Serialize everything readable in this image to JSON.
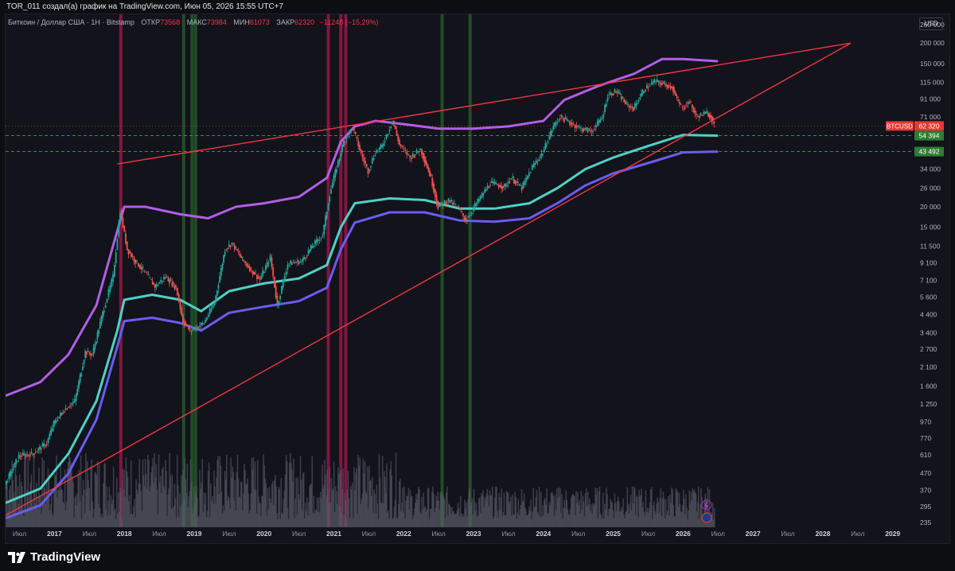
{
  "header": {
    "caption": "TOR_011 создал(а) график на TradingView.com, Июн 05, 2026 15:55 UTC+7"
  },
  "legend": {
    "symbol": "Биткоин / Доллар США · 1H · Bitstamp",
    "open_label": "ОТКР",
    "open_value": "73568",
    "high_label": "МАКС",
    "high_value": "73984",
    "low_label": "МИН",
    "low_value": "61073",
    "close_label": "ЗАКР",
    "close_value": "62320",
    "change": "−11248 (−15,29%)"
  },
  "currency": "USD",
  "brand": "TradingView",
  "colors": {
    "background": "#12131b",
    "up": "#26a69a",
    "down": "#ef5350",
    "band_upper": "#b25ee6",
    "band_mid": "#4fd1c5",
    "band_lower": "#6a5cf0",
    "trendline": "#f23645",
    "green_zone": "#2e7d32",
    "magenta_zone": "#d81b60"
  },
  "chart_data": {
    "type": "line",
    "title": "",
    "symbol": "BTCUSD",
    "scale": "log",
    "ylim": [
      220,
      300000
    ],
    "xlim": [
      2016.3,
      2029.3
    ],
    "y_ticks": [
      "260 000",
      "200 000",
      "150 000",
      "115 000",
      "91 000",
      "71 000",
      "54 000",
      "43 000",
      "34 000",
      "26 000",
      "20 000",
      "15 000",
      "11 500",
      "9 100",
      "7 100",
      "5 600",
      "4 400",
      "3 400",
      "2 700",
      "2 100",
      "1 600",
      "1 250",
      "970",
      "770",
      "610",
      "470",
      "370",
      "295",
      "235"
    ],
    "x_ticks": [
      {
        "label": "Июл",
        "t": 2016.5
      },
      {
        "label": "2017",
        "t": 2017.0
      },
      {
        "label": "Июл",
        "t": 2017.5
      },
      {
        "label": "2018",
        "t": 2018.0
      },
      {
        "label": "Июл",
        "t": 2018.5
      },
      {
        "label": "2019",
        "t": 2019.0
      },
      {
        "label": "Июл",
        "t": 2019.5
      },
      {
        "label": "2020",
        "t": 2020.0
      },
      {
        "label": "Июл",
        "t": 2020.5
      },
      {
        "label": "2021",
        "t": 2021.0
      },
      {
        "label": "Июл",
        "t": 2021.5
      },
      {
        "label": "2022",
        "t": 2022.0
      },
      {
        "label": "Июл",
        "t": 2022.5
      },
      {
        "label": "2023",
        "t": 2023.0
      },
      {
        "label": "Июл",
        "t": 2023.5
      },
      {
        "label": "2024",
        "t": 2024.0
      },
      {
        "label": "Июл",
        "t": 2024.5
      },
      {
        "label": "2025",
        "t": 2025.0
      },
      {
        "label": "Июл",
        "t": 2025.5
      },
      {
        "label": "2026",
        "t": 2026.0
      },
      {
        "label": "Июл",
        "t": 2026.5
      },
      {
        "label": "2027",
        "t": 2027.0
      },
      {
        "label": "Июл",
        "t": 2027.5
      },
      {
        "label": "2028",
        "t": 2028.0
      },
      {
        "label": "Июл",
        "t": 2028.5
      },
      {
        "label": "2029",
        "t": 2029.0
      }
    ],
    "price_series": [
      [
        2016.3,
        400
      ],
      [
        2016.5,
        600
      ],
      [
        2016.7,
        620
      ],
      [
        2016.9,
        720
      ],
      [
        2017.0,
        950
      ],
      [
        2017.15,
        1150
      ],
      [
        2017.3,
        1300
      ],
      [
        2017.45,
        2600
      ],
      [
        2017.55,
        2500
      ],
      [
        2017.7,
        4500
      ],
      [
        2017.85,
        7500
      ],
      [
        2017.95,
        19000
      ],
      [
        2018.05,
        11000
      ],
      [
        2018.15,
        9500
      ],
      [
        2018.3,
        8000
      ],
      [
        2018.45,
        6500
      ],
      [
        2018.6,
        7500
      ],
      [
        2018.75,
        6400
      ],
      [
        2018.85,
        4000
      ],
      [
        2018.95,
        3500
      ],
      [
        2019.15,
        3900
      ],
      [
        2019.3,
        5200
      ],
      [
        2019.45,
        11000
      ],
      [
        2019.55,
        12000
      ],
      [
        2019.7,
        9500
      ],
      [
        2019.85,
        8000
      ],
      [
        2019.95,
        7200
      ],
      [
        2020.1,
        9800
      ],
      [
        2020.2,
        5000
      ],
      [
        2020.35,
        9000
      ],
      [
        2020.55,
        9300
      ],
      [
        2020.7,
        11500
      ],
      [
        2020.85,
        13500
      ],
      [
        2020.95,
        24000
      ],
      [
        2021.05,
        35000
      ],
      [
        2021.15,
        50000
      ],
      [
        2021.28,
        61000
      ],
      [
        2021.4,
        42000
      ],
      [
        2021.5,
        33000
      ],
      [
        2021.6,
        43000
      ],
      [
        2021.7,
        47000
      ],
      [
        2021.85,
        67000
      ],
      [
        2021.95,
        48000
      ],
      [
        2022.1,
        40000
      ],
      [
        2022.25,
        45000
      ],
      [
        2022.4,
        30000
      ],
      [
        2022.5,
        20000
      ],
      [
        2022.65,
        22000
      ],
      [
        2022.8,
        19500
      ],
      [
        2022.9,
        16500
      ],
      [
        2023.05,
        21000
      ],
      [
        2023.25,
        28000
      ],
      [
        2023.45,
        26500
      ],
      [
        2023.55,
        30000
      ],
      [
        2023.7,
        26000
      ],
      [
        2023.85,
        35000
      ],
      [
        2024.0,
        43000
      ],
      [
        2024.15,
        62000
      ],
      [
        2024.25,
        71000
      ],
      [
        2024.4,
        65000
      ],
      [
        2024.55,
        60000
      ],
      [
        2024.7,
        58000
      ],
      [
        2024.85,
        70000
      ],
      [
        2024.93,
        96000
      ],
      [
        2025.05,
        102000
      ],
      [
        2025.2,
        84000
      ],
      [
        2025.3,
        80000
      ],
      [
        2025.45,
        104000
      ],
      [
        2025.6,
        117000
      ],
      [
        2025.75,
        112000
      ],
      [
        2025.85,
        108000
      ],
      [
        2025.92,
        90000
      ],
      [
        2026.0,
        80000
      ],
      [
        2026.1,
        88000
      ],
      [
        2026.2,
        71000
      ],
      [
        2026.35,
        75000
      ],
      [
        2026.42,
        70000
      ],
      [
        2026.45,
        62320
      ]
    ],
    "series": [
      {
        "name": "",
        "role": "upper_band",
        "points": [
          [
            2016.3,
            1400
          ],
          [
            2016.8,
            1700
          ],
          [
            2017.2,
            2500
          ],
          [
            2017.6,
            5000
          ],
          [
            2017.85,
            12000
          ],
          [
            2018.0,
            20000
          ],
          [
            2018.3,
            20000
          ],
          [
            2018.8,
            18000
          ],
          [
            2019.2,
            17000
          ],
          [
            2019.6,
            20000
          ],
          [
            2020.0,
            21000
          ],
          [
            2020.5,
            23000
          ],
          [
            2020.9,
            30000
          ],
          [
            2021.1,
            50000
          ],
          [
            2021.3,
            62000
          ],
          [
            2021.6,
            67000
          ],
          [
            2022.0,
            64000
          ],
          [
            2022.5,
            60000
          ],
          [
            2023.0,
            60000
          ],
          [
            2023.5,
            62000
          ],
          [
            2024.0,
            67000
          ],
          [
            2024.3,
            90000
          ],
          [
            2024.8,
            110000
          ],
          [
            2025.3,
            130000
          ],
          [
            2025.7,
            160000
          ],
          [
            2026.0,
            160000
          ],
          [
            2026.5,
            155000
          ]
        ]
      },
      {
        "name": "",
        "role": "mid_band",
        "points": [
          [
            2016.3,
            310
          ],
          [
            2016.8,
            380
          ],
          [
            2017.2,
            620
          ],
          [
            2017.6,
            1300
          ],
          [
            2017.9,
            3500
          ],
          [
            2018.0,
            5400
          ],
          [
            2018.4,
            5800
          ],
          [
            2018.8,
            5400
          ],
          [
            2019.1,
            4600
          ],
          [
            2019.5,
            6100
          ],
          [
            2020.0,
            6800
          ],
          [
            2020.5,
            7300
          ],
          [
            2020.9,
            8800
          ],
          [
            2021.1,
            15000
          ],
          [
            2021.3,
            21000
          ],
          [
            2021.8,
            22500
          ],
          [
            2022.3,
            22000
          ],
          [
            2022.8,
            19500
          ],
          [
            2023.3,
            19500
          ],
          [
            2023.8,
            21000
          ],
          [
            2024.2,
            26000
          ],
          [
            2024.6,
            34000
          ],
          [
            2025.0,
            40000
          ],
          [
            2025.5,
            47000
          ],
          [
            2026.0,
            55000
          ],
          [
            2026.5,
            54394
          ]
        ]
      },
      {
        "name": "",
        "role": "lower_band",
        "points": [
          [
            2016.3,
            250
          ],
          [
            2016.8,
            300
          ],
          [
            2017.2,
            470
          ],
          [
            2017.6,
            1000
          ],
          [
            2017.9,
            2800
          ],
          [
            2018.0,
            4000
          ],
          [
            2018.4,
            4200
          ],
          [
            2018.8,
            3900
          ],
          [
            2019.1,
            3500
          ],
          [
            2019.5,
            4500
          ],
          [
            2020.0,
            4900
          ],
          [
            2020.5,
            5300
          ],
          [
            2020.9,
            6400
          ],
          [
            2021.1,
            11000
          ],
          [
            2021.3,
            16000
          ],
          [
            2021.8,
            18500
          ],
          [
            2022.3,
            18500
          ],
          [
            2022.8,
            16500
          ],
          [
            2023.3,
            16200
          ],
          [
            2023.8,
            17000
          ],
          [
            2024.2,
            21000
          ],
          [
            2024.6,
            27000
          ],
          [
            2025.0,
            32000
          ],
          [
            2025.5,
            37000
          ],
          [
            2026.0,
            43000
          ],
          [
            2026.5,
            43492
          ]
        ]
      }
    ],
    "trendlines": [
      {
        "name": "",
        "from": [
          2017.9,
          36500
        ],
        "to": [
          2028.4,
          200000
        ]
      },
      {
        "name": "",
        "from": [
          2016.3,
          260
        ],
        "to": [
          2028.4,
          200000
        ]
      }
    ],
    "vertical_zones": [
      {
        "color": "magenta",
        "t": 2017.95
      },
      {
        "color": "green",
        "t": 2018.85
      },
      {
        "color": "green",
        "t": 2018.97
      },
      {
        "color": "green",
        "t": 2019.02
      },
      {
        "color": "magenta",
        "t": 2020.92
      },
      {
        "color": "magenta",
        "t": 2021.1
      },
      {
        "color": "magenta",
        "t": 2021.17
      },
      {
        "color": "green",
        "t": 2022.55
      },
      {
        "color": "green",
        "t": 2022.95
      }
    ],
    "price_labels": [
      {
        "text": "BTCUSD",
        "kind": "symbol"
      },
      {
        "text": "62 320",
        "value": 62320,
        "kind": "last"
      },
      {
        "text": "54 394",
        "value": 54394,
        "kind": "level"
      },
      {
        "text": "43 492",
        "value": 43492,
        "kind": "level"
      }
    ]
  }
}
